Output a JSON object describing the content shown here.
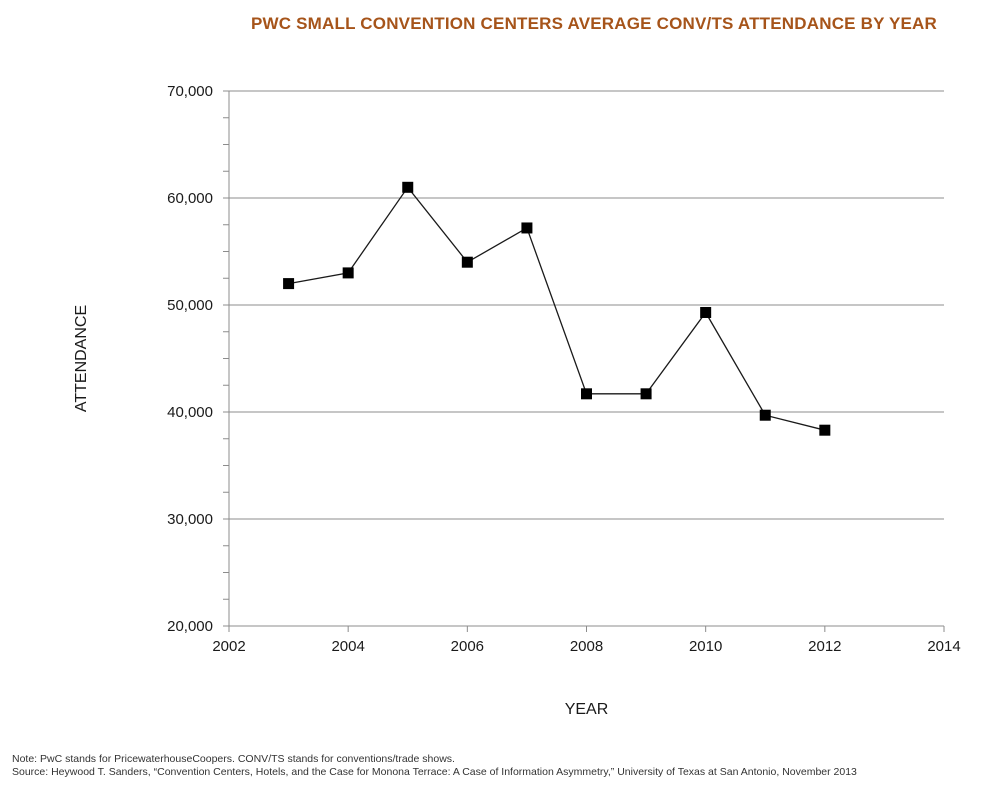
{
  "colors": {
    "title": "#a6541a",
    "grid": "#8c8c8c",
    "line": "#1a1a1a",
    "marker": "#000000"
  },
  "chart_data": {
    "type": "line",
    "title": "PWC SMALL CONVENTION CENTERS AVERAGE CONV/TS ATTENDANCE BY YEAR",
    "xlabel": "YEAR",
    "ylabel": "ATTENDANCE",
    "xlim": [
      2002,
      2014
    ],
    "ylim": [
      20000,
      70000
    ],
    "x_ticks": [
      2002,
      2004,
      2006,
      2008,
      2010,
      2012,
      2014
    ],
    "x_tick_labels": [
      "2002",
      "2004",
      "2006",
      "2008",
      "2010",
      "2012",
      "2014"
    ],
    "y_ticks": [
      20000,
      30000,
      40000,
      50000,
      60000,
      70000
    ],
    "y_tick_labels": [
      "20,000",
      "30,000",
      "40,000",
      "50,000",
      "60,000",
      "70,000"
    ],
    "y_minor_step": 2500,
    "grid": "horizontal",
    "legend": "none",
    "marker": "square",
    "series": [
      {
        "x": [
          2003,
          2004,
          2005,
          2006,
          2007,
          2008,
          2009,
          2010,
          2011,
          2012
        ],
        "values": [
          52000,
          53000,
          61000,
          54000,
          57200,
          41700,
          41700,
          49300,
          39700,
          38300
        ]
      }
    ]
  },
  "notes": {
    "note": "Note: PwC stands for PricewaterhouseCoopers. CONV/TS stands for conventions/trade shows.",
    "source": "Source: Heywood T. Sanders, “Convention Centers, Hotels, and the Case for Monona Terrace: A Case of Information Asymmetry,” University of Texas at San Antonio, November 2013"
  }
}
